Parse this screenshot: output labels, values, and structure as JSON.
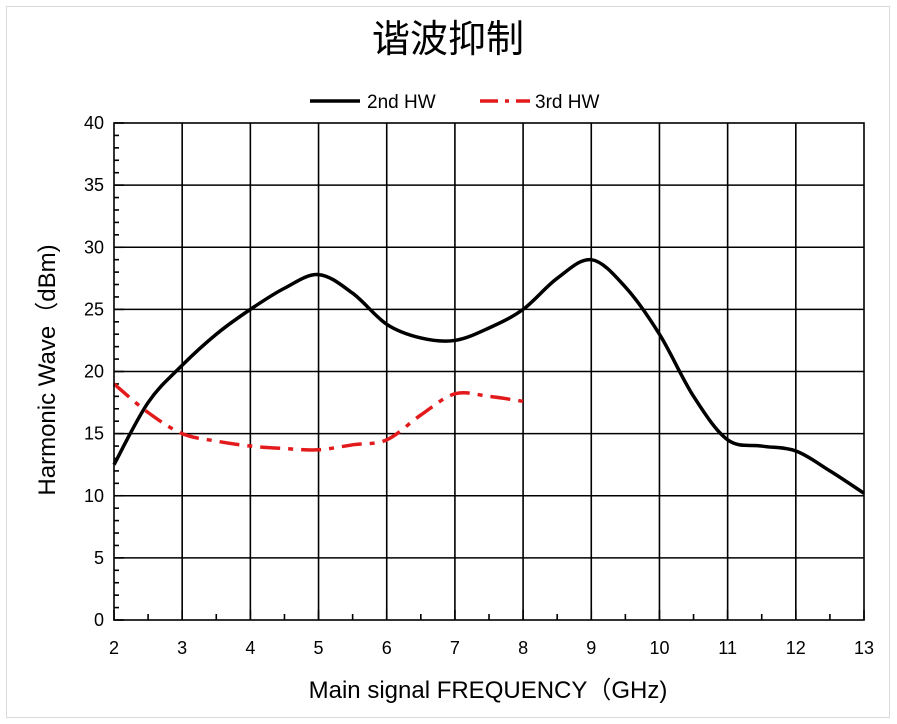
{
  "chart_data": {
    "type": "line",
    "title": "谐波抑制",
    "xlabel": "Main signal FREQUENCY（GHz)",
    "ylabel": "Harmonic Wave（dBm)",
    "xlim": [
      2,
      13
    ],
    "ylim": [
      0,
      40
    ],
    "x_ticks": [
      "2",
      "3",
      "4",
      "5",
      "6",
      "7",
      "8",
      "9",
      "10",
      "11",
      "12",
      "13"
    ],
    "y_ticks": [
      "0",
      "5",
      "10",
      "15",
      "20",
      "25",
      "30",
      "35",
      "40"
    ],
    "grid": true,
    "legend_position": "top-center",
    "series": [
      {
        "name": "2nd HW",
        "color": "#000000",
        "style": "solid",
        "points": [
          [
            2,
            12.5
          ],
          [
            2.5,
            17.5
          ],
          [
            3,
            20.5
          ],
          [
            3.5,
            23.0
          ],
          [
            4,
            25.0
          ],
          [
            4.5,
            26.7
          ],
          [
            5,
            27.8
          ],
          [
            5.5,
            26.3
          ],
          [
            6,
            23.8
          ],
          [
            6.5,
            22.7
          ],
          [
            7,
            22.5
          ],
          [
            7.5,
            23.5
          ],
          [
            8,
            25.0
          ],
          [
            8.5,
            27.5
          ],
          [
            9,
            29.0
          ],
          [
            9.5,
            26.8
          ],
          [
            10,
            23.0
          ],
          [
            10.5,
            18.0
          ],
          [
            11,
            14.5
          ],
          [
            11.5,
            14.0
          ],
          [
            12,
            13.6
          ],
          [
            12.5,
            12.0
          ],
          [
            13,
            10.2
          ]
        ]
      },
      {
        "name": "3rd HW",
        "color": "#e31a1c",
        "style": "dash-dot",
        "points": [
          [
            2,
            19.0
          ],
          [
            2.5,
            16.7
          ],
          [
            3,
            15.0
          ],
          [
            3.5,
            14.4
          ],
          [
            4,
            14.0
          ],
          [
            4.5,
            13.8
          ],
          [
            5,
            13.7
          ],
          [
            5.5,
            14.1
          ],
          [
            6,
            14.5
          ],
          [
            6.5,
            16.5
          ],
          [
            7,
            18.2
          ],
          [
            7.5,
            18.0
          ],
          [
            8,
            17.6
          ]
        ]
      }
    ]
  }
}
